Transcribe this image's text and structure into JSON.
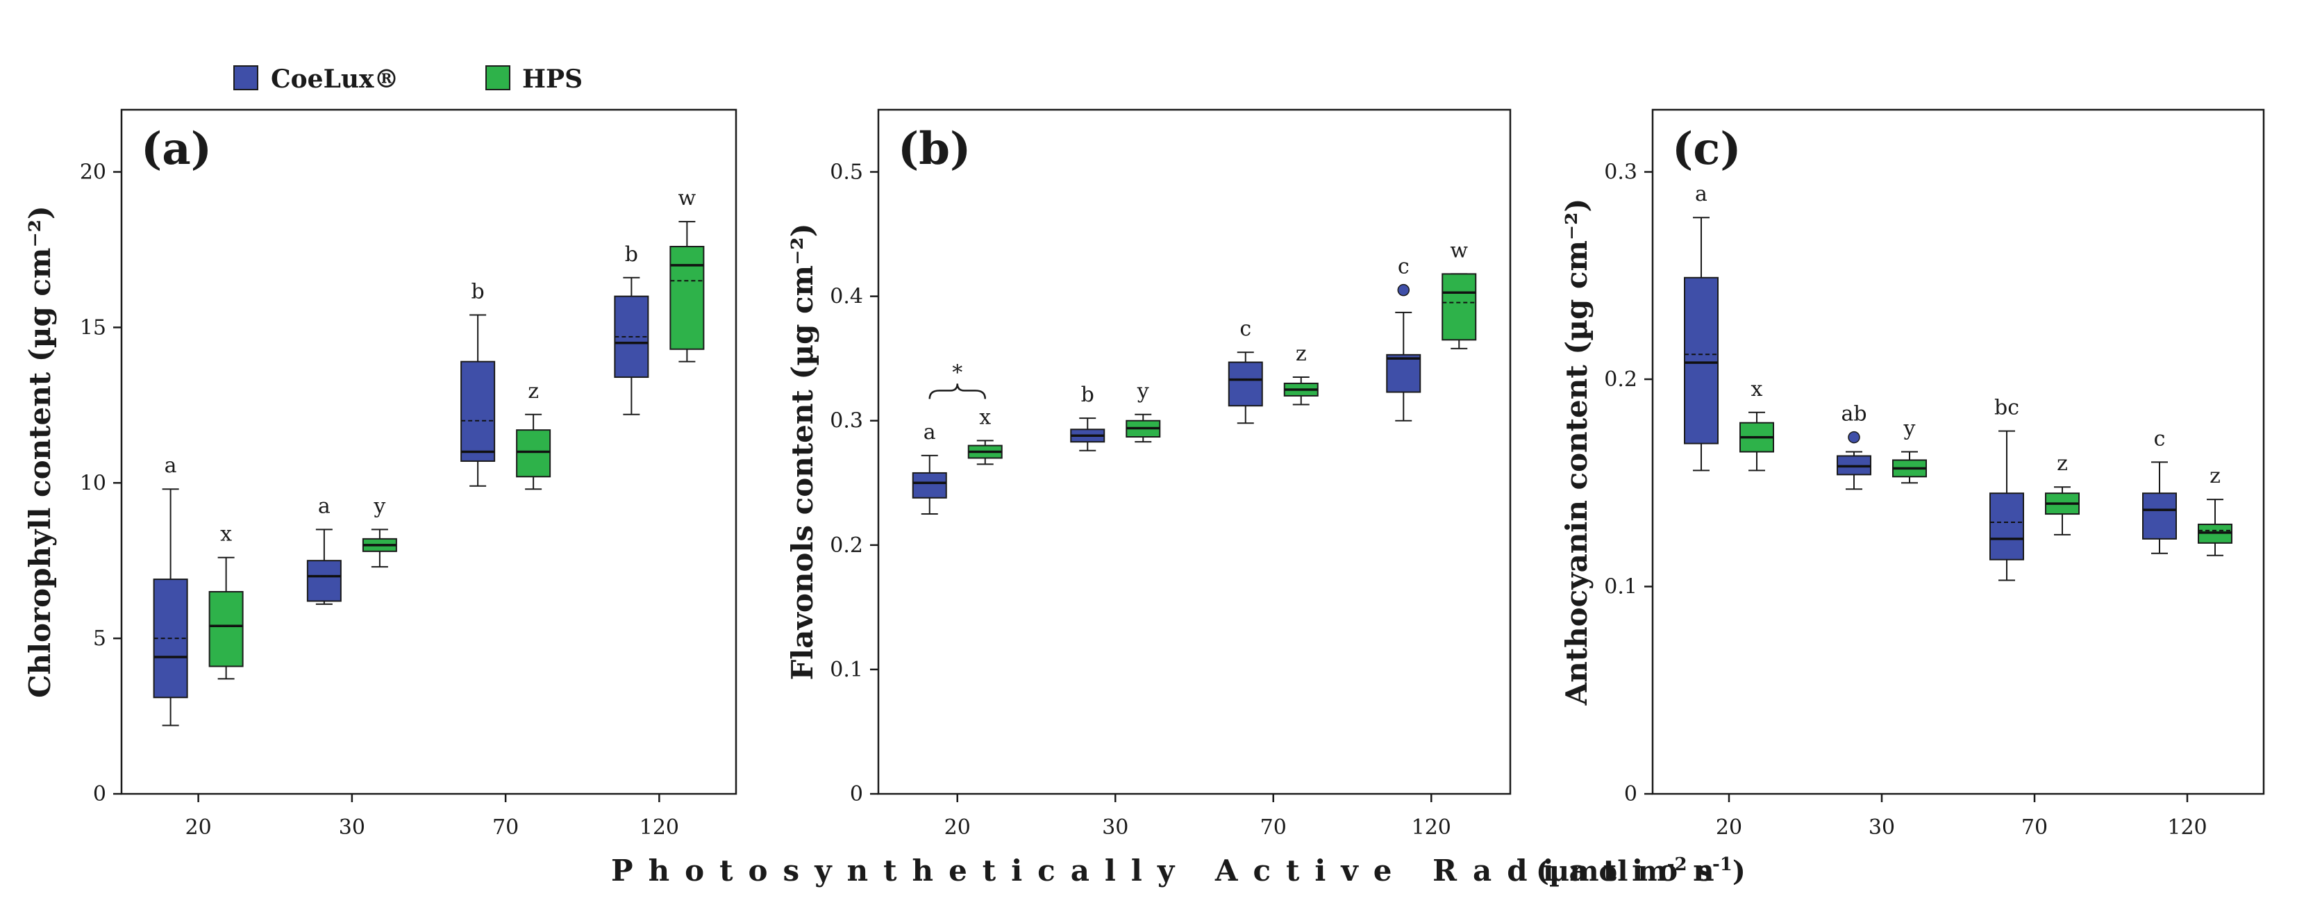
{
  "colors": {
    "coelux": "#3f4fa8",
    "hps": "#2eb24a",
    "axis": "#1a1a1a"
  },
  "legend": [
    {
      "name": "CoeLux®",
      "color": "#3f4fa8"
    },
    {
      "name": "HPS",
      "color": "#2eb24a"
    }
  ],
  "xlabel": {
    "text": "Photosynthetically Active Radiation",
    "unit_main": "(µmol m",
    "unit_sup1": "-2",
    "unit_mid": " s",
    "unit_sup2": "-1",
    "unit_end": ")"
  },
  "chart_data": [
    {
      "type": "box",
      "panel": "(a)",
      "ylabel": "Chlorophyll content (µg cm⁻²)",
      "ylim": [
        0,
        22
      ],
      "yticks": [
        0,
        5,
        10,
        15,
        20
      ],
      "ytick_labels": [
        "0",
        "5",
        "10",
        "15",
        "20"
      ],
      "categories": [
        "20",
        "30",
        "70",
        "120"
      ],
      "series": [
        {
          "name": "CoeLux®",
          "boxes": [
            {
              "min": 2.2,
              "q1": 3.1,
              "median": 4.4,
              "mean": 5.0,
              "q3": 6.9,
              "max": 9.8,
              "letter": "a"
            },
            {
              "min": 6.1,
              "q1": 6.2,
              "median": 7.0,
              "mean": 7.0,
              "q3": 7.5,
              "max": 8.5,
              "letter": "a"
            },
            {
              "min": 9.9,
              "q1": 10.7,
              "median": 11.0,
              "mean": 12.0,
              "q3": 13.9,
              "max": 15.4,
              "letter": "b"
            },
            {
              "min": 12.2,
              "q1": 13.4,
              "median": 14.5,
              "mean": 14.7,
              "q3": 16.0,
              "max": 16.6,
              "letter": "b"
            }
          ]
        },
        {
          "name": "HPS",
          "boxes": [
            {
              "min": 3.7,
              "q1": 4.1,
              "median": 5.4,
              "mean": 5.4,
              "q3": 6.5,
              "max": 7.6,
              "letter": "x"
            },
            {
              "min": 7.3,
              "q1": 7.8,
              "median": 8.0,
              "mean": 8.0,
              "q3": 8.2,
              "max": 8.5,
              "letter": "y"
            },
            {
              "min": 9.8,
              "q1": 10.2,
              "median": 11.0,
              "mean": 11.0,
              "q3": 11.7,
              "max": 12.2,
              "letter": "z"
            },
            {
              "min": 13.9,
              "q1": 14.3,
              "median": 17.0,
              "mean": 16.5,
              "q3": 17.6,
              "max": 18.4,
              "letter": "w"
            }
          ]
        }
      ]
    },
    {
      "type": "box",
      "panel": "(b)",
      "ylabel": "Flavonols content (µg cm⁻²)",
      "ylim": [
        0,
        0.55
      ],
      "yticks": [
        0,
        0.1,
        0.2,
        0.3,
        0.4,
        0.5
      ],
      "ytick_labels": [
        "0",
        "0.1",
        "0.2",
        "0.3",
        "0.4",
        "0.5"
      ],
      "categories": [
        "20",
        "30",
        "70",
        "120"
      ],
      "significance": {
        "category": "20",
        "label": "*"
      },
      "series": [
        {
          "name": "CoeLux®",
          "boxes": [
            {
              "min": 0.225,
              "q1": 0.238,
              "median": 0.25,
              "mean": 0.25,
              "q3": 0.258,
              "max": 0.272,
              "letter": "a"
            },
            {
              "min": 0.276,
              "q1": 0.283,
              "median": 0.288,
              "mean": 0.288,
              "q3": 0.293,
              "max": 0.302,
              "letter": "b"
            },
            {
              "min": 0.298,
              "q1": 0.312,
              "median": 0.333,
              "mean": 0.333,
              "q3": 0.347,
              "max": 0.355,
              "letter": "c"
            },
            {
              "min": 0.3,
              "q1": 0.323,
              "median": 0.35,
              "mean": 0.35,
              "q3": 0.353,
              "max": 0.387,
              "outlier": 0.405,
              "letter": "c"
            }
          ]
        },
        {
          "name": "HPS",
          "boxes": [
            {
              "min": 0.265,
              "q1": 0.27,
              "median": 0.275,
              "mean": 0.275,
              "q3": 0.28,
              "max": 0.284,
              "letter": "x"
            },
            {
              "min": 0.283,
              "q1": 0.287,
              "median": 0.294,
              "mean": 0.294,
              "q3": 0.3,
              "max": 0.305,
              "letter": "y"
            },
            {
              "min": 0.313,
              "q1": 0.32,
              "median": 0.325,
              "mean": 0.325,
              "q3": 0.33,
              "max": 0.335,
              "letter": "z"
            },
            {
              "min": 0.358,
              "q1": 0.365,
              "median": 0.403,
              "mean": 0.395,
              "q3": 0.418,
              "max": 0.418,
              "letter": "w"
            }
          ]
        }
      ]
    },
    {
      "type": "box",
      "panel": "(c)",
      "ylabel": "Anthocyanin content (µg cm⁻²)",
      "ylim": [
        0,
        0.33
      ],
      "yticks": [
        0,
        0.1,
        0.2,
        0.3
      ],
      "ytick_labels": [
        "0",
        "0.1",
        "0.2",
        "0.3"
      ],
      "categories": [
        "20",
        "30",
        "70",
        "120"
      ],
      "series": [
        {
          "name": "CoeLux®",
          "boxes": [
            {
              "min": 0.156,
              "q1": 0.169,
              "median": 0.208,
              "mean": 0.212,
              "q3": 0.249,
              "max": 0.278,
              "letter": "a"
            },
            {
              "min": 0.147,
              "q1": 0.154,
              "median": 0.158,
              "mean": 0.158,
              "q3": 0.163,
              "max": 0.165,
              "outlier": 0.172,
              "letter": "ab"
            },
            {
              "min": 0.103,
              "q1": 0.113,
              "median": 0.123,
              "mean": 0.131,
              "q3": 0.145,
              "max": 0.175,
              "letter": "bc"
            },
            {
              "min": 0.116,
              "q1": 0.123,
              "median": 0.137,
              "mean": 0.137,
              "q3": 0.145,
              "max": 0.16,
              "letter": "c"
            }
          ]
        },
        {
          "name": "HPS",
          "boxes": [
            {
              "min": 0.156,
              "q1": 0.165,
              "median": 0.172,
              "mean": 0.172,
              "q3": 0.179,
              "max": 0.184,
              "letter": "x"
            },
            {
              "min": 0.15,
              "q1": 0.153,
              "median": 0.157,
              "mean": 0.157,
              "q3": 0.161,
              "max": 0.165,
              "letter": "y"
            },
            {
              "min": 0.125,
              "q1": 0.135,
              "median": 0.14,
              "mean": 0.14,
              "q3": 0.145,
              "max": 0.148,
              "letter": "z"
            },
            {
              "min": 0.115,
              "q1": 0.121,
              "median": 0.126,
              "mean": 0.127,
              "q3": 0.13,
              "max": 0.142,
              "letter": "z"
            }
          ]
        }
      ]
    }
  ]
}
